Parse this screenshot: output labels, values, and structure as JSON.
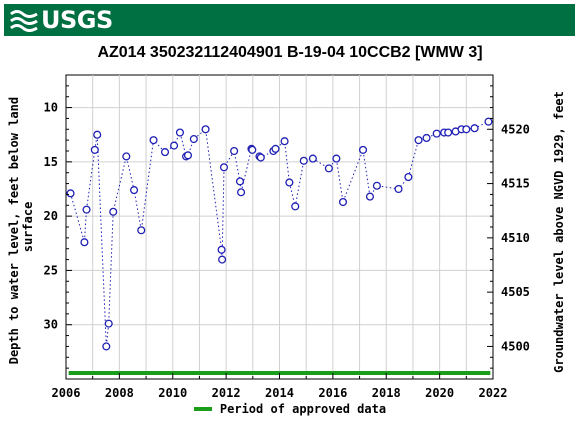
{
  "header": {
    "logo_text": "USGS",
    "logo_icon": "usgs-wave-icon",
    "banner_color": "#006f41"
  },
  "chart_data": {
    "type": "scatter",
    "title": "AZ014 350232112404901 B-19-04 10CCB2 [WMW 3]",
    "ylabel_left": "Depth to water level, feet below land surface",
    "ylabel_left_lines": [
      "Depth to water level, feet below land",
      "surface"
    ],
    "ylabel_right": "Groundwater level above NGVD 1929, feet",
    "xlim": [
      2006,
      2022
    ],
    "ylim_left": [
      35,
      7
    ],
    "ylim_right": [
      4497,
      4525
    ],
    "x_ticks": [
      "2006",
      "2008",
      "2010",
      "2012",
      "2014",
      "2016",
      "2018",
      "2020",
      "2022"
    ],
    "y_ticks_left": [
      "10",
      "15",
      "20",
      "25",
      "30"
    ],
    "y_ticks_right": [
      "4500",
      "4505",
      "4510",
      "4515",
      "4520"
    ],
    "grid": true,
    "line_style": "dotted",
    "series_color": "#1f1fb4",
    "approved_color": "#1a9e1a",
    "approved_period": [
      2006.1,
      2021.9
    ],
    "legend": {
      "label": "Period of approved data",
      "placement": "bottom-center"
    },
    "series": [
      {
        "x": [
          2006.17,
          2006.69,
          2006.77,
          2007.08,
          2007.17,
          2007.51,
          2007.6,
          2007.77,
          2008.26,
          2008.55,
          2008.82,
          2009.28,
          2009.71,
          2010.05,
          2010.27,
          2010.5,
          2010.57,
          2010.79,
          2011.23,
          2011.83,
          2011.85,
          2011.92,
          2012.3,
          2012.52,
          2012.56,
          2012.95,
          2012.98,
          2013.25,
          2013.3,
          2013.77,
          2013.85,
          2014.19,
          2014.37,
          2014.59,
          2014.91,
          2015.25,
          2015.85,
          2016.13,
          2016.38,
          2017.13,
          2017.39,
          2017.65,
          2018.46,
          2018.83,
          2019.21,
          2019.51,
          2019.89,
          2020.17,
          2020.32,
          2020.6,
          2020.82,
          2021.0,
          2021.31,
          2021.83
        ],
        "y": [
          17.9,
          22.4,
          19.4,
          13.9,
          12.5,
          32.0,
          29.9,
          19.6,
          14.5,
          17.6,
          21.3,
          13.0,
          14.1,
          13.5,
          12.3,
          14.5,
          14.4,
          12.9,
          12.0,
          23.1,
          24.0,
          15.5,
          14.0,
          16.8,
          17.8,
          13.8,
          13.9,
          14.5,
          14.6,
          14.0,
          13.8,
          13.1,
          16.9,
          19.1,
          14.9,
          14.7,
          15.6,
          14.7,
          18.7,
          13.9,
          18.2,
          17.2,
          17.5,
          16.4,
          13.0,
          12.8,
          12.4,
          12.3,
          12.3,
          12.2,
          12.0,
          12.0,
          11.9,
          11.3
        ]
      }
    ]
  }
}
